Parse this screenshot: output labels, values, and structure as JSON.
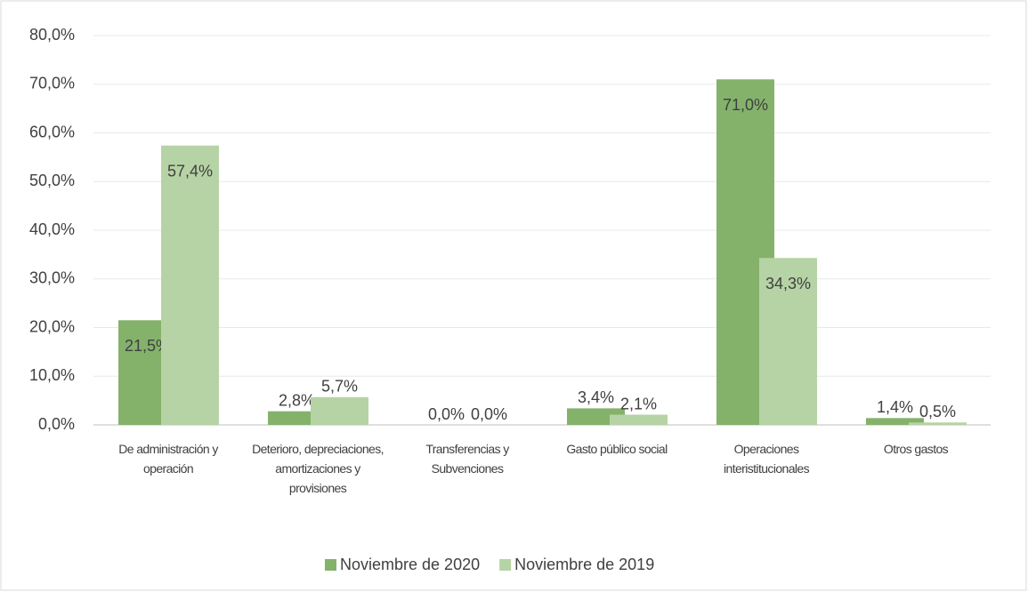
{
  "chart_data": {
    "type": "bar",
    "categories": [
      "De administración y operación",
      "Deterioro, depreciaciones, amortizaciones y provisiones",
      "Transferencias y Subvenciones",
      "Gasto público social",
      "Operaciones interistitucionales",
      "Otros gastos"
    ],
    "series": [
      {
        "name": "Noviembre de 2020",
        "color": "#84b26b",
        "values": [
          21.5,
          2.8,
          0.0,
          3.4,
          71.0,
          1.4
        ],
        "value_labels": [
          "21,5%",
          "2,8%",
          "0,0%",
          "3,4%",
          "71,0%",
          "1,4%"
        ]
      },
      {
        "name": "Noviembre de 2019",
        "color": "#b6d3a5",
        "values": [
          57.4,
          5.7,
          0.0,
          2.1,
          34.3,
          0.5
        ],
        "value_labels": [
          "57,4%",
          "5,7%",
          "0,0%",
          "2,1%",
          "34,3%",
          "0,5%"
        ]
      }
    ],
    "ylim": [
      0,
      80
    ],
    "yticks": [
      {
        "value": 0,
        "label": "0,0%"
      },
      {
        "value": 10,
        "label": "10,0%"
      },
      {
        "value": 20,
        "label": "20,0%"
      },
      {
        "value": 30,
        "label": "30,0%"
      },
      {
        "value": 40,
        "label": "40,0%"
      },
      {
        "value": 50,
        "label": "50,0%"
      },
      {
        "value": 60,
        "label": "60,0%"
      },
      {
        "value": 70,
        "label": "70,0%"
      },
      {
        "value": 80,
        "label": "80,0%"
      }
    ],
    "grid": true,
    "legend": "bottom"
  }
}
